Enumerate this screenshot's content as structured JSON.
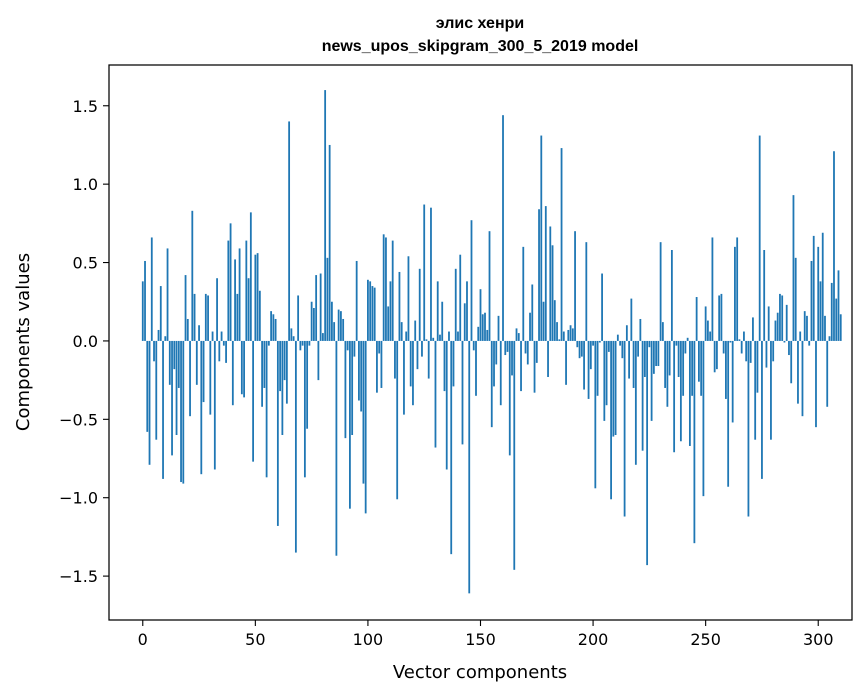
{
  "chart_data": {
    "type": "bar",
    "title": "элис хенри",
    "subtitle": "news_upos_skipgram_300_5_2019 model",
    "xlabel": "Vector components",
    "ylabel": "Components values",
    "xlim": [
      -15,
      315
    ],
    "ylim": [
      -1.78,
      1.76
    ],
    "xticks": [
      0,
      50,
      100,
      150,
      200,
      250,
      300
    ],
    "xtick_labels": [
      "0",
      "50",
      "100",
      "150",
      "200",
      "250",
      "300"
    ],
    "yticks": [
      -1.5,
      -1.0,
      -0.5,
      0.0,
      0.5,
      1.0,
      1.5
    ],
    "ytick_labels": [
      "−1.5",
      "−1.0",
      "−0.5",
      "0.0",
      "0.5",
      "1.0",
      "1.5"
    ],
    "bar_color": "#1f77b4",
    "grid": false,
    "legend": "none",
    "series": [
      {
        "values": [
          0.38,
          0.51,
          -0.58,
          -0.79,
          0.66,
          -0.13,
          -0.63,
          0.07,
          0.35,
          -0.88,
          0.03,
          0.59,
          -0.28,
          -0.73,
          -0.18,
          -0.6,
          -0.3,
          -0.9,
          -0.91,
          0.42,
          0.14,
          -0.48,
          0.83,
          0.3,
          -0.28,
          0.1,
          -0.85,
          -0.39,
          0.3,
          0.29,
          -0.47,
          0.06,
          -0.82,
          0.4,
          -0.13,
          0.06,
          -0.03,
          -0.14,
          0.64,
          0.75,
          -0.41,
          0.52,
          0.3,
          0.59,
          -0.34,
          -0.36,
          0.64,
          0.4,
          0.82,
          -0.77,
          0.55,
          0.56,
          0.32,
          -0.42,
          -0.3,
          -0.87,
          -0.03,
          0.19,
          0.17,
          0.14,
          -1.18,
          -0.32,
          -0.6,
          -0.25,
          -0.4,
          1.4,
          0.08,
          0.03,
          -1.35,
          0.29,
          -0.06,
          -0.03,
          -0.87,
          -0.56,
          -0.03,
          0.25,
          0.21,
          0.42,
          -0.25,
          0.43,
          0.05,
          1.6,
          0.53,
          1.25,
          0.25,
          0.12,
          -1.37,
          0.2,
          0.19,
          0.14,
          -0.62,
          -0.06,
          -1.07,
          -0.6,
          -0.1,
          0.51,
          -0.38,
          -0.45,
          -0.91,
          -1.1,
          0.39,
          0.38,
          0.35,
          0.34,
          -0.33,
          -0.08,
          -0.3,
          0.68,
          0.66,
          0.22,
          0.38,
          0.64,
          -0.24,
          -1.01,
          0.44,
          0.12,
          -0.47,
          0.06,
          0.54,
          -0.29,
          -0.41,
          0.13,
          -0.18,
          0.46,
          -0.1,
          0.87,
          0.01,
          -0.24,
          0.85,
          0.02,
          -0.68,
          0.38,
          0.04,
          0.25,
          -0.32,
          -0.82,
          0.06,
          -1.36,
          -0.29,
          0.46,
          0.06,
          0.55,
          -0.66,
          0.24,
          0.38,
          -1.61,
          0.77,
          -0.06,
          -0.35,
          0.09,
          0.33,
          0.17,
          0.18,
          0.07,
          0.7,
          -0.55,
          -0.29,
          -0.15,
          0.16,
          -0.41,
          1.44,
          -0.09,
          -0.07,
          -0.73,
          -0.22,
          -1.46,
          0.08,
          0.05,
          -0.32,
          0.6,
          -0.08,
          -0.15,
          0.18,
          0.36,
          -0.33,
          -0.14,
          0.84,
          1.31,
          0.25,
          0.86,
          -0.23,
          0.73,
          0.61,
          0.26,
          0.12,
          0.01,
          1.23,
          0.06,
          -0.28,
          0.07,
          0.1,
          0.08,
          0.7,
          -0.04,
          -0.11,
          -0.1,
          -0.31,
          0.63,
          -0.37,
          -0.18,
          -0.03,
          -0.94,
          -0.35,
          -0.01,
          0.43,
          -0.51,
          -0.41,
          -0.07,
          -1.01,
          -0.61,
          -0.6,
          0.04,
          -0.03,
          -0.11,
          -1.12,
          0.1,
          -0.24,
          0.27,
          -0.3,
          -0.79,
          -0.1,
          0.14,
          -0.7,
          -0.23,
          -1.43,
          -0.04,
          -0.51,
          -0.21,
          -0.16,
          -0.16,
          0.63,
          0.12,
          -0.3,
          -0.42,
          -0.22,
          0.58,
          -0.71,
          -0.03,
          -0.23,
          -0.64,
          -0.35,
          -0.08,
          0.02,
          -0.67,
          -0.35,
          -1.29,
          0.28,
          -0.26,
          -0.35,
          -0.99,
          0.22,
          0.13,
          0.06,
          0.66,
          -0.2,
          -0.18,
          0.29,
          0.3,
          -0.08,
          -0.37,
          -0.93,
          -0.01,
          -0.52,
          0.6,
          0.66,
          0.01,
          -0.08,
          0.06,
          -0.13,
          -1.12,
          -0.14,
          0.15,
          -0.63,
          -0.33,
          1.31,
          -0.88,
          0.58,
          -0.17,
          0.22,
          -0.63,
          -0.13,
          0.13,
          0.18,
          0.3,
          0.29,
          -0.01,
          0.23,
          -0.09,
          -0.27,
          0.93,
          0.53,
          -0.4,
          0.06,
          -0.48,
          0.19,
          0.16,
          -0.03,
          0.51,
          0.67,
          -0.55,
          0.6,
          0.38,
          0.69,
          0.16,
          -0.42,
          0.03,
          0.37,
          1.21,
          0.27,
          0.45,
          0.17
        ]
      }
    ]
  }
}
